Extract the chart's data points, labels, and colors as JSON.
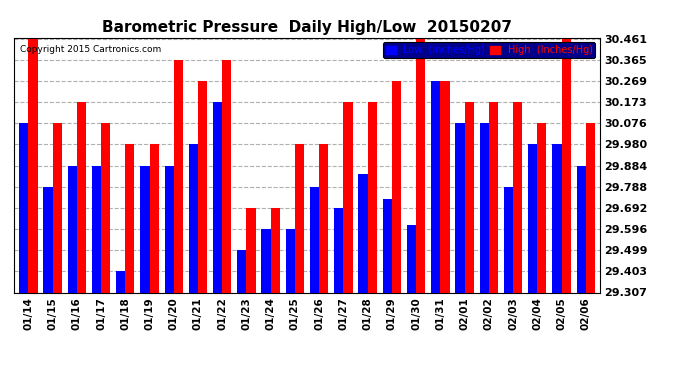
{
  "title": "Barometric Pressure  Daily High/Low  20150207",
  "copyright": "Copyright 2015 Cartronics.com",
  "dates": [
    "01/14",
    "01/15",
    "01/16",
    "01/17",
    "01/18",
    "01/19",
    "01/20",
    "01/21",
    "01/22",
    "01/23",
    "01/24",
    "01/25",
    "01/26",
    "01/27",
    "01/28",
    "01/29",
    "01/30",
    "01/31",
    "02/01",
    "02/02",
    "02/03",
    "02/04",
    "02/05",
    "02/06"
  ],
  "low_values": [
    30.076,
    29.788,
    29.884,
    29.884,
    29.403,
    29.884,
    29.884,
    29.98,
    30.173,
    29.499,
    29.596,
    29.596,
    29.788,
    29.692,
    29.844,
    29.73,
    29.615,
    30.269,
    30.076,
    30.076,
    29.788,
    29.98,
    29.98,
    29.884
  ],
  "high_values": [
    30.461,
    30.076,
    30.173,
    30.076,
    29.98,
    29.98,
    30.365,
    30.269,
    30.365,
    29.692,
    29.692,
    29.98,
    29.98,
    30.173,
    30.173,
    30.269,
    30.461,
    30.269,
    30.173,
    30.173,
    30.173,
    30.076,
    30.461,
    30.076
  ],
  "low_color": "#0000ff",
  "high_color": "#ff0000",
  "bg_color": "#ffffff",
  "grid_color": "#b0b0b0",
  "yticks": [
    29.307,
    29.403,
    29.499,
    29.596,
    29.692,
    29.788,
    29.884,
    29.98,
    30.076,
    30.173,
    30.269,
    30.365,
    30.461
  ],
  "ymin": 29.307,
  "ymax": 30.461,
  "title_fontsize": 11,
  "legend_low_label": "Low  (Inches/Hg)",
  "legend_high_label": "High  (Inches/Hg)"
}
